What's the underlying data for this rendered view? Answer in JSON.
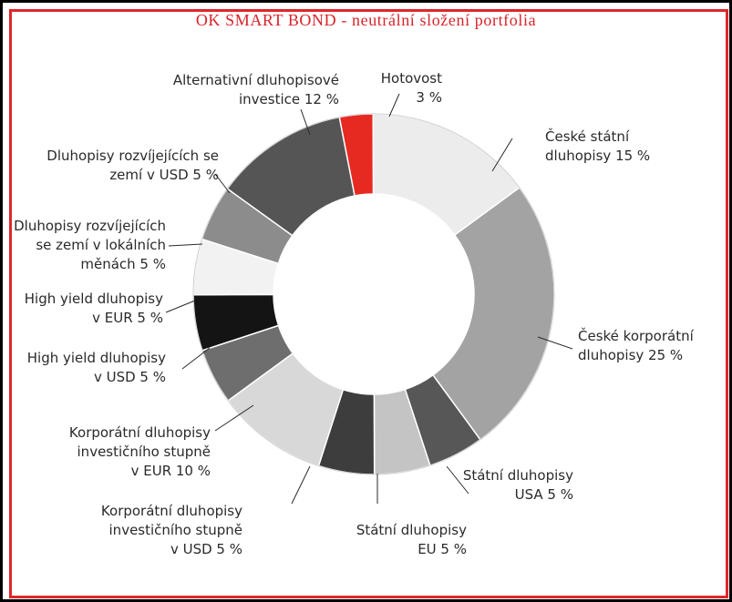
{
  "chart_data": {
    "type": "pie",
    "title": "OK SMART BOND - neutrální složení portfolia",
    "slices": [
      {
        "label_lines": [
          "Hotovost",
          "3 %"
        ],
        "value": 3,
        "color": "#e62a22"
      },
      {
        "label_lines": [
          "České státní",
          "dluhopisy 15 %"
        ],
        "value": 15,
        "color": "#ececec"
      },
      {
        "label_lines": [
          "České korporátní",
          "dluhopisy 25 %"
        ],
        "value": 25,
        "color": "#a3a3a3"
      },
      {
        "label_lines": [
          "Státní dluhopisy",
          "USA 5 %"
        ],
        "value": 5,
        "color": "#575757"
      },
      {
        "label_lines": [
          "Státní dluhopisy",
          "EU 5 %"
        ],
        "value": 5,
        "color": "#c4c4c4"
      },
      {
        "label_lines": [
          "Korporátní dluhopisy",
          "investičního stupně",
          "v USD 5 %"
        ],
        "value": 5,
        "color": "#3d3d3d"
      },
      {
        "label_lines": [
          "Korporátní dluhopisy",
          "investičního stupně",
          "v EUR 10 %"
        ],
        "value": 10,
        "color": "#d8d8d8"
      },
      {
        "label_lines": [
          "High yield dluhopisy",
          "v USD 5 %"
        ],
        "value": 5,
        "color": "#6e6e6e"
      },
      {
        "label_lines": [
          "High yield dluhopisy",
          "v EUR 5 %"
        ],
        "value": 5,
        "color": "#141414"
      },
      {
        "label_lines": [
          "Dluhopisy rozvíjejících",
          "se zemí v lokálních",
          "měnách 5 %"
        ],
        "value": 5,
        "color": "#f2f2f2"
      },
      {
        "label_lines": [
          "Dluhopisy rozvíjejících se",
          "zemí v USD 5 %"
        ],
        "value": 5,
        "color": "#8c8c8c"
      },
      {
        "label_lines": [
          "Alternativní dluhopisové",
          "investice 12 %"
        ],
        "value": 12,
        "color": "#555555"
      }
    ]
  }
}
